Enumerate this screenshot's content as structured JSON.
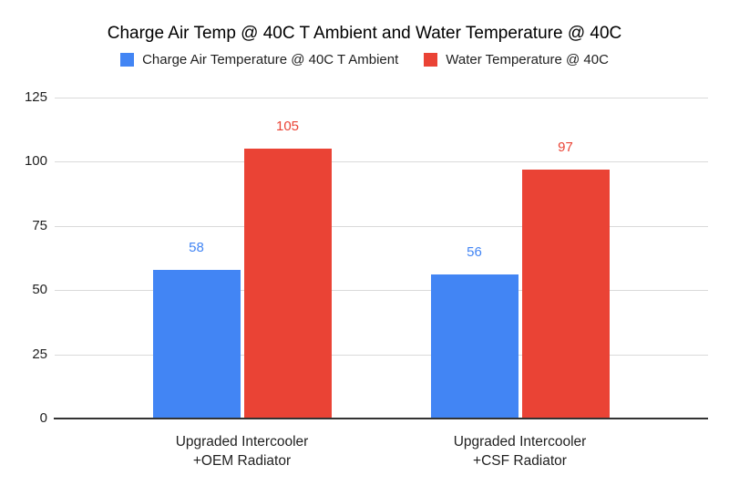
{
  "chart_data": {
    "type": "bar",
    "title": "Charge Air Temp @ 40C T Ambient and Water Temperature @ 40C",
    "categories": [
      "Upgraded Intercooler\n+OEM Radiator",
      "Upgraded Intercooler\n+CSF Radiator"
    ],
    "series": [
      {
        "name": "Charge Air Temperature @ 40C T Ambient",
        "color": "#4285F4",
        "values": [
          58,
          56
        ]
      },
      {
        "name": "Water Temperature @ 40C",
        "color": "#EA4335",
        "values": [
          105,
          97
        ]
      }
    ],
    "ylim": [
      0,
      125
    ],
    "yticks": [
      0,
      25,
      50,
      75,
      100,
      125
    ],
    "grid": true,
    "legend_position": "top",
    "data_labels": true,
    "colors": {
      "background": "#ffffff",
      "grid": "#dadada",
      "axis_line": "#333333",
      "tick_text": "#1f1f1f",
      "title_text": "#000000"
    }
  }
}
